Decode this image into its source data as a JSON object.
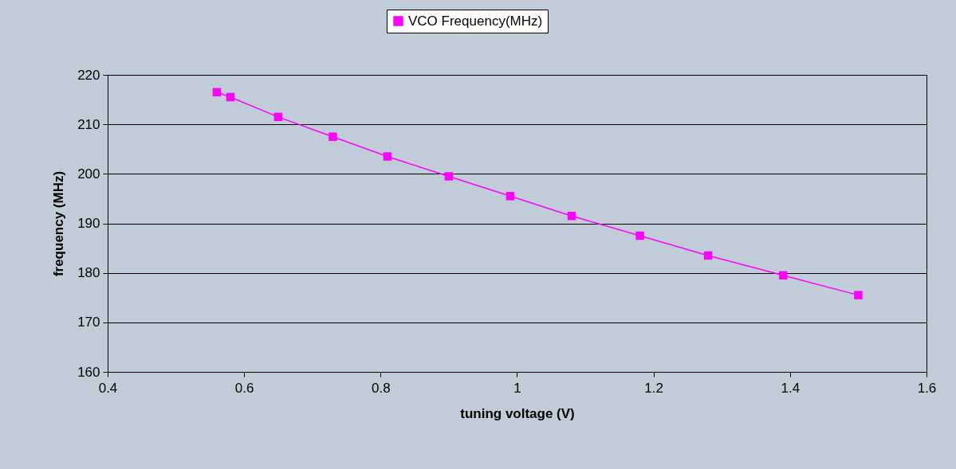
{
  "chart_data": {
    "type": "line",
    "xlabel": "tuning voltage (V)",
    "ylabel": "frequency (MHz)",
    "x": [
      0.56,
      0.58,
      0.65,
      0.73,
      0.81,
      0.9,
      0.99,
      1.08,
      1.18,
      1.28,
      1.39,
      1.5
    ],
    "series": [
      {
        "name": "VCO Frequency(MHz)",
        "color": "#ff00ff",
        "values": [
          216.5,
          215.5,
          211.5,
          207.5,
          203.5,
          199.5,
          195.5,
          191.5,
          187.5,
          183.5,
          179.5,
          175.5
        ]
      }
    ],
    "xlim": [
      0.4,
      1.6
    ],
    "xticks": [
      0.4,
      0.6,
      0.8,
      1,
      1.2,
      1.4,
      1.6
    ],
    "ylim": [
      160,
      220
    ],
    "yticks": [
      160,
      170,
      180,
      190,
      200,
      210,
      220
    ],
    "grid": "y",
    "legend": "top",
    "marker": "square",
    "line_style": "solid"
  }
}
